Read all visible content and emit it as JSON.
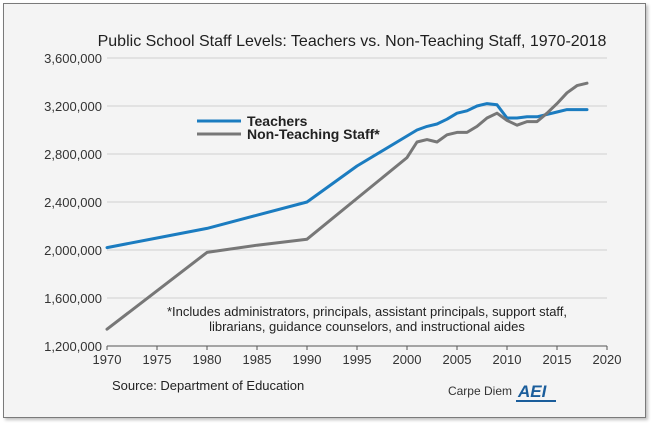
{
  "chart_data": {
    "type": "line",
    "title": "Public School Staff Levels: Teachers vs. Non-Teaching Staff, 1970-2018",
    "xlabel": "",
    "ylabel": "",
    "xlim": [
      1970,
      2020
    ],
    "ylim": [
      1200000,
      3600000
    ],
    "x_ticks": [
      "1970",
      "1975",
      "1980",
      "1985",
      "1990",
      "1995",
      "2000",
      "2005",
      "2010",
      "2015",
      "2020"
    ],
    "y_ticks": [
      "1,200,000",
      "1,600,000",
      "2,000,000",
      "2,400,000",
      "2,800,000",
      "3,200,000",
      "3,600,000"
    ],
    "grid": "horizontal",
    "legend_position": "upper-left",
    "series": [
      {
        "name": "Teachers",
        "color": "#1b7cc0",
        "x": [
          1970,
          1975,
          1980,
          1985,
          1990,
          1995,
          2000,
          2001,
          2002,
          2003,
          2004,
          2005,
          2006,
          2007,
          2008,
          2009,
          2010,
          2011,
          2012,
          2013,
          2014,
          2015,
          2016,
          2017,
          2018
        ],
        "values": [
          2020000,
          2100000,
          2180000,
          2290000,
          2400000,
          2700000,
          2950000,
          3000000,
          3030000,
          3050000,
          3090000,
          3140000,
          3160000,
          3200000,
          3220000,
          3210000,
          3100000,
          3100000,
          3110000,
          3110000,
          3130000,
          3150000,
          3170000,
          3170000,
          3170000
        ]
      },
      {
        "name": "Non-Teaching Staff*",
        "color": "#777777",
        "x": [
          1970,
          1975,
          1980,
          1985,
          1990,
          1995,
          2000,
          2001,
          2002,
          2003,
          2004,
          2005,
          2006,
          2007,
          2008,
          2009,
          2010,
          2011,
          2012,
          2013,
          2014,
          2015,
          2016,
          2017,
          2018
        ],
        "values": [
          1340000,
          1660000,
          1980000,
          2040000,
          2090000,
          2430000,
          2770000,
          2900000,
          2920000,
          2900000,
          2960000,
          2980000,
          2980000,
          3030000,
          3100000,
          3140000,
          3080000,
          3040000,
          3070000,
          3070000,
          3140000,
          3220000,
          3310000,
          3370000,
          3390000
        ]
      }
    ],
    "annotation_lines": [
      "*Includes administrators, principals, assistant principals, support staff,",
      "librarians, guidance counselors, and instructional aides"
    ]
  },
  "footer": {
    "source": "Source: Department of Education",
    "brand": "Carpe Diem",
    "logo": "AEI"
  }
}
